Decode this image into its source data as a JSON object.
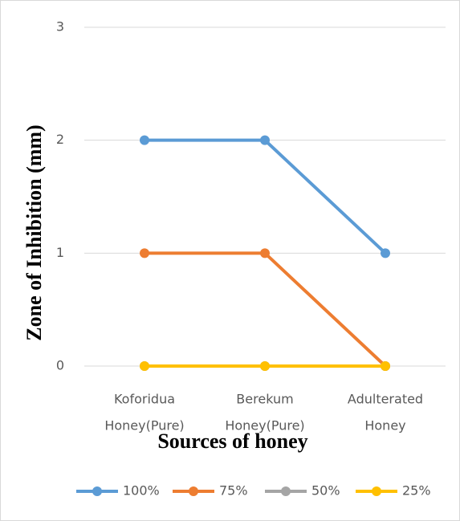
{
  "chart_data": {
    "type": "line",
    "x_label": "Sources of honey",
    "y_label": "Zone of Inhibition (mm)",
    "categories": [
      [
        "Koforidua",
        "Honey(Pure)"
      ],
      [
        "Berekum",
        "Honey(Pure)"
      ],
      [
        "Adulterated",
        "Honey"
      ]
    ],
    "series": [
      {
        "name": "100%",
        "color": "#5b9bd5",
        "values": [
          2,
          2,
          1
        ]
      },
      {
        "name": "75%",
        "color": "#ed7d31",
        "values": [
          1,
          1,
          0
        ]
      },
      {
        "name": "50%",
        "color": "#a5a5a5",
        "values": [
          0,
          0,
          0
        ]
      },
      {
        "name": "25%",
        "color": "#ffc000",
        "values": [
          0,
          0,
          0
        ]
      }
    ],
    "ylim": [
      0,
      3
    ],
    "yticks": [
      0,
      1,
      2,
      3
    ],
    "grid": true,
    "legend": "bottom"
  }
}
